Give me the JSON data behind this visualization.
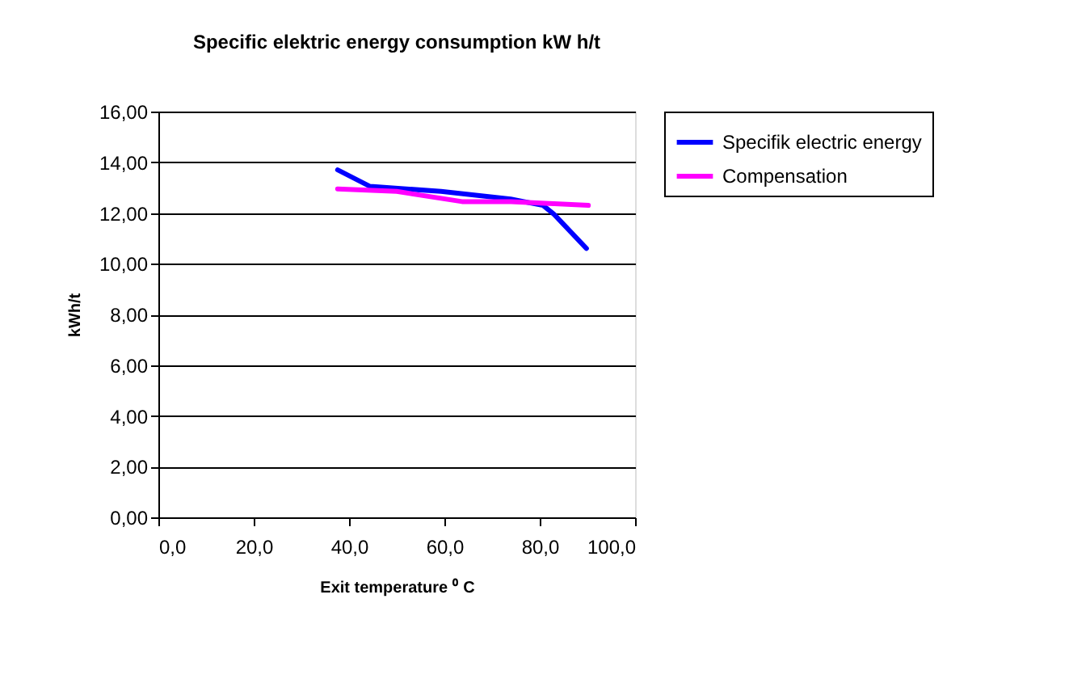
{
  "chart_data": {
    "type": "line",
    "title": "Specific elektric energy consumption kW h/t",
    "xlabel": "Exit temperature ⁰ C",
    "ylabel": "kWh/t",
    "series": [
      {
        "name": "Specifik electric energy",
        "color": "#0000ff",
        "x": [
          37.6,
          44.4,
          59.3,
          73.9,
          80.7,
          83.0,
          89.8
        ],
        "values": [
          13.7,
          13.05,
          12.85,
          12.55,
          12.3,
          11.95,
          10.6
        ]
      },
      {
        "name": "Compensation",
        "color": "#ff00ff",
        "x": [
          37.6,
          50.0,
          63.7,
          74.0,
          90.2
        ],
        "values": [
          12.95,
          12.85,
          12.45,
          12.45,
          12.3
        ]
      }
    ],
    "xlim": [
      0,
      100
    ],
    "ylim": [
      0,
      16
    ],
    "xticks": [
      {
        "value": 0,
        "label": "0,0"
      },
      {
        "value": 20,
        "label": "20,0"
      },
      {
        "value": 40,
        "label": "40,0"
      },
      {
        "value": 60,
        "label": "60,0"
      },
      {
        "value": 80,
        "label": "80,0"
      },
      {
        "value": 100,
        "label": "100,0"
      }
    ],
    "yticks": [
      {
        "value": 0,
        "label": "0,00"
      },
      {
        "value": 2,
        "label": "2,00"
      },
      {
        "value": 4,
        "label": "4,00"
      },
      {
        "value": 6,
        "label": "6,00"
      },
      {
        "value": 8,
        "label": "8,00"
      },
      {
        "value": 10,
        "label": "10,00"
      },
      {
        "value": 12,
        "label": "12,00"
      },
      {
        "value": 14,
        "label": "14,00"
      },
      {
        "value": 16,
        "label": "16,00"
      }
    ],
    "grid": "y",
    "legend": "right",
    "marker": "none",
    "line_style": "solid"
  }
}
